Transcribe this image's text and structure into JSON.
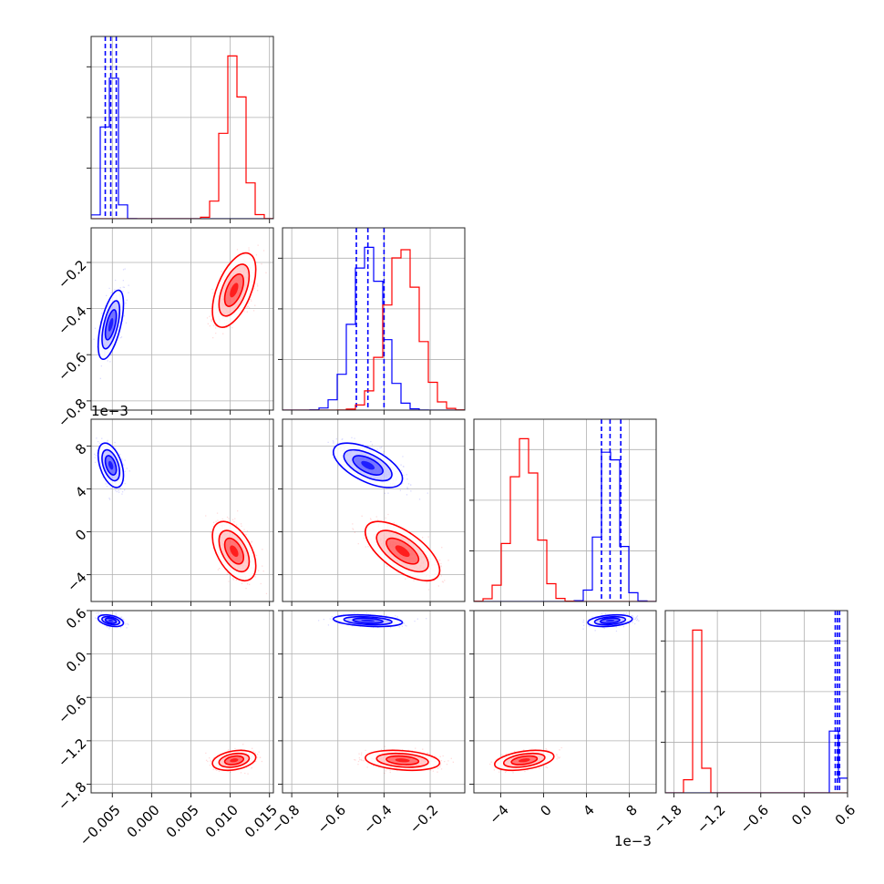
{
  "colors": {
    "blue": "#0000ff",
    "red": "#ff0000",
    "grid": "#b0b0b0"
  },
  "chart_data": {
    "type": "corner",
    "grid": true,
    "series": [
      {
        "color": "blue",
        "params": [
          {
            "mean": -0.0052,
            "sd": 0.0007,
            "quantiles": [
              -0.0059,
              -0.0052,
              -0.0045
            ]
          },
          {
            "mean": -0.47,
            "sd": 0.065,
            "quantiles": [
              -0.52,
              -0.47,
              -0.4
            ]
          },
          {
            "mean": 0.0062,
            "sd": 0.0009,
            "quantiles": [
              0.0054,
              0.0062,
              0.0072
            ]
          },
          {
            "mean": 0.46,
            "sd": 0.035,
            "quantiles": [
              0.43,
              0.46,
              0.49
            ]
          }
        ],
        "corr": [
          [
            1,
            0.6,
            -0.45,
            -0.4
          ],
          [
            0.6,
            1,
            -0.6,
            -0.3
          ],
          [
            -0.45,
            -0.6,
            1,
            0.3
          ],
          [
            -0.4,
            -0.3,
            0.3,
            1
          ]
        ]
      },
      {
        "color": "red",
        "params": [
          {
            "mean": 0.0105,
            "sd": 0.0012,
            "quantiles": null
          },
          {
            "mean": -0.32,
            "sd": 0.07,
            "quantiles": null
          },
          {
            "mean": -0.0018,
            "sd": 0.0012,
            "quantiles": null
          },
          {
            "mean": -1.47,
            "sd": 0.06,
            "quantiles": null
          }
        ],
        "corr": [
          [
            1,
            0.55,
            -0.5,
            0.3
          ],
          [
            0.55,
            1,
            -0.65,
            -0.25
          ],
          [
            -0.5,
            -0.65,
            1,
            0.4
          ],
          [
            0.3,
            -0.25,
            0.4,
            1
          ]
        ]
      }
    ],
    "axes": [
      {
        "range": [
          -0.0077,
          0.0155
        ],
        "ticks": [
          -0.005,
          0.0,
          0.005,
          0.01,
          0.015
        ],
        "tick_labels": [
          "−0.005",
          "0.000",
          "0.005",
          "0.010",
          "0.015"
        ],
        "offset": ""
      },
      {
        "range": [
          -0.84,
          -0.05
        ],
        "ticks": [
          -0.8,
          -0.6,
          -0.4,
          -0.2
        ],
        "tick_labels": [
          "−0.8",
          "−0.6",
          "−0.4",
          "−0.2"
        ],
        "offset": ""
      },
      {
        "range": [
          -0.0065,
          0.0105
        ],
        "ticks": [
          -0.004,
          0.0,
          0.004,
          0.008
        ],
        "tick_labels": [
          "−4",
          "0",
          "4",
          "8"
        ],
        "offset": "1e−3"
      },
      {
        "range": [
          -1.92,
          0.6
        ],
        "ticks": [
          -1.8,
          -1.2,
          -0.6,
          0.0,
          0.6
        ],
        "tick_labels": [
          "−1.8",
          "−1.2",
          "−0.6",
          "0.0",
          "0.6"
        ],
        "offset": ""
      }
    ],
    "y_axes": [
      null,
      {
        "ticks": [
          -0.8,
          -0.6,
          -0.4,
          -0.2
        ],
        "tick_labels": [
          "−0.8",
          "−0.6",
          "−0.4",
          "−0.2"
        ],
        "offset": ""
      },
      {
        "ticks": [
          -0.004,
          0.0,
          0.004,
          0.008
        ],
        "tick_labels": [
          "−4",
          "0",
          "4",
          "8"
        ],
        "offset": "1e−3"
      },
      {
        "ticks": [
          -1.8,
          -1.2,
          -0.6,
          0.0,
          0.6
        ],
        "tick_labels": [
          "−1.8",
          "−1.2",
          "−0.6",
          "0.0",
          "0.6"
        ],
        "offset": ""
      }
    ]
  }
}
